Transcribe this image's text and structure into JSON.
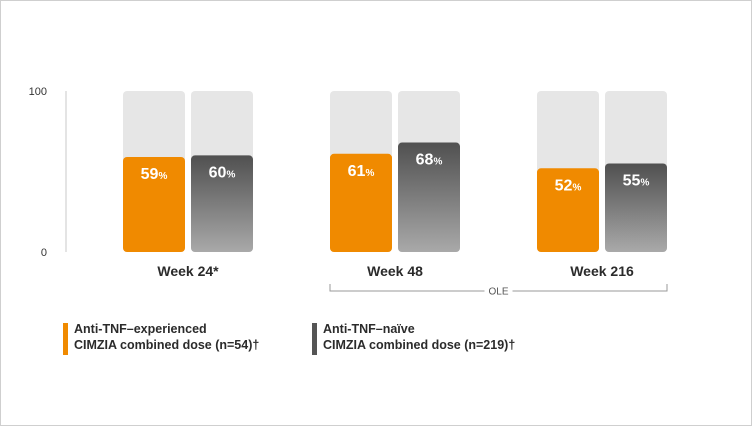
{
  "chart_data": {
    "type": "bar",
    "categories": [
      "Week 24*",
      "Week 48",
      "Week 216"
    ],
    "series": [
      {
        "name": "Anti-TNF–experienced CIMZIA combined dose (n=54)†",
        "values": [
          59,
          61,
          52
        ],
        "color": "#f08a00"
      },
      {
        "name": "Anti-TNF–naïve CIMZIA combined dose (n=219)†",
        "values": [
          60,
          68,
          55
        ],
        "color": "#555555"
      }
    ],
    "value_suffix": "%",
    "ylim": [
      0,
      100
    ],
    "yticks": [
      0,
      100
    ],
    "background_bar_color": "#e6e6e6",
    "bracket_label": "OLE",
    "bracket_categories": [
      "Week 48",
      "Week 216"
    ],
    "grid": false
  },
  "legend": [
    {
      "line1": "Anti-TNF–experienced",
      "line2": "CIMZIA combined dose (n=54)†",
      "color": "#f08a00"
    },
    {
      "line1": "Anti-TNF–naïve",
      "line2": "CIMZIA combined dose (n=219)†",
      "color": "#555555"
    }
  ]
}
